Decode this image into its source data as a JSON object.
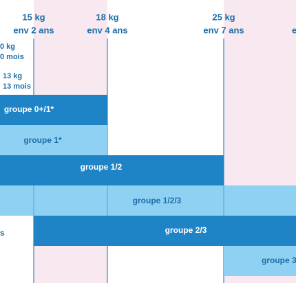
{
  "headers": [
    {
      "weight": "15 kg",
      "age": "env 2 ans"
    },
    {
      "weight": "18 kg",
      "age": "env 4 ans"
    },
    {
      "weight": "25 kg",
      "age": "env 7 ans"
    },
    {
      "weight": "",
      "age": "e"
    }
  ],
  "left_labels": [
    {
      "weight": "0 kg",
      "age": "0 mois"
    },
    {
      "weight": "13 kg",
      "age": "13 mois"
    }
  ],
  "groups": [
    "groupe 0+/1*",
    "groupe 1*",
    "groupe 1/2",
    "groupe 1/2/3",
    "groupe 2/3",
    "groupe 3"
  ],
  "side_text": "s"
}
